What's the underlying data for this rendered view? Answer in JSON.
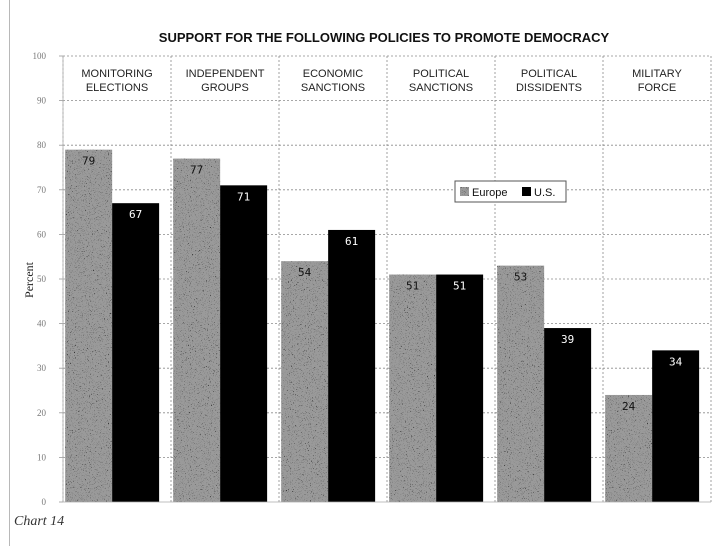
{
  "caption": "Chart 14",
  "chart_data": {
    "type": "bar",
    "title": "SUPPORT FOR THE FOLLOWING POLICIES TO PROMOTE DEMOCRACY",
    "xlabel": "",
    "ylabel": "Percent",
    "ylim": [
      0,
      100
    ],
    "yticks": [
      "0",
      "10",
      "20",
      "30",
      "40",
      "50",
      "60",
      "70",
      "80",
      "90",
      "100"
    ],
    "categories": [
      [
        "MONITORING",
        "ELECTIONS"
      ],
      [
        "INDEPENDENT",
        "GROUPS"
      ],
      [
        "ECONOMIC",
        "SANCTIONS"
      ],
      [
        "POLITICAL",
        "SANCTIONS"
      ],
      [
        "POLITICAL",
        "DISSIDENTS"
      ],
      [
        "MILITARY",
        "FORCE"
      ]
    ],
    "series": [
      {
        "name": "Europe",
        "values": [
          79,
          77,
          54,
          51,
          53,
          24
        ],
        "color": "#9a9a9a",
        "pattern": "speckled"
      },
      {
        "name": "U.S.",
        "values": [
          67,
          71,
          61,
          51,
          39,
          34
        ],
        "color": "#000000"
      }
    ],
    "data_labels": [
      [
        "79",
        "77",
        "54",
        "51",
        "53",
        "24"
      ],
      [
        "67",
        "71",
        "61",
        "51",
        "39",
        "34"
      ]
    ],
    "grid": true,
    "legend_position": "upper-right inside plot"
  }
}
